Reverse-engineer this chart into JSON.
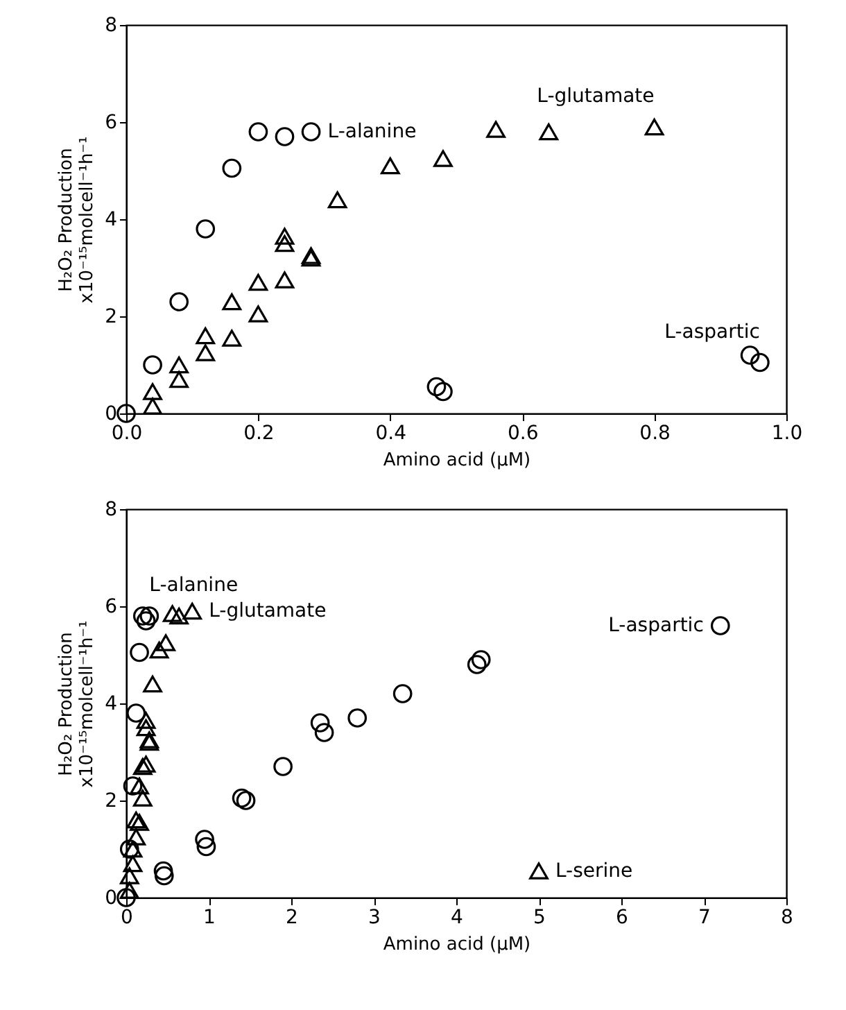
{
  "chart_data": [
    {
      "type": "scatter",
      "xlabel": "Amino acid (μM)",
      "ylabel": "H₂O₂ Production\nx10⁻¹⁵molcell⁻¹h⁻¹",
      "xlim": [
        0,
        1
      ],
      "ylim": [
        0,
        8
      ],
      "xticks": [
        {
          "value": 0,
          "label": "0.0"
        },
        0.2,
        0.4,
        0.6,
        0.8,
        {
          "value": 1,
          "label": "1.0"
        }
      ],
      "yticks": [
        0,
        2,
        4,
        6,
        8
      ],
      "series": [
        {
          "name": "L-alanine",
          "color": "#000000",
          "marker": "circle",
          "x": [
            0.04,
            0.08,
            0.12,
            0.16,
            0.2,
            0.24,
            0.28
          ],
          "values": [
            1.0,
            2.3,
            3.8,
            5.05,
            5.8,
            5.7,
            5.8
          ]
        },
        {
          "name": "L-glutamate",
          "color": "#000000",
          "marker": "triangle",
          "x": [
            0.04,
            0.04,
            0.08,
            0.08,
            0.12,
            0.12,
            0.16,
            0.16,
            0.2,
            0.2,
            0.24,
            0.24,
            0.24,
            0.28,
            0.28,
            0.32,
            0.4,
            0.48,
            0.56,
            0.64,
            0.8
          ],
          "values": [
            0.15,
            0.45,
            0.7,
            1.0,
            1.25,
            1.6,
            1.55,
            2.3,
            2.05,
            2.7,
            2.75,
            3.5,
            3.65,
            3.2,
            3.25,
            4.4,
            5.1,
            5.25,
            5.85,
            5.8,
            5.9
          ]
        },
        {
          "name": "L-aspartic",
          "color": "#000000",
          "marker": "circle",
          "x": [
            0,
            0.47,
            0.48,
            0.945,
            0.96
          ],
          "values": [
            0,
            0.55,
            0.45,
            1.2,
            1.05
          ]
        }
      ]
    },
    {
      "type": "scatter",
      "xlabel": "Amino acid (μM)",
      "ylabel": "H₂O₂ Production\nx10⁻¹⁵molcell⁻¹h⁻¹",
      "xlim": [
        0,
        8
      ],
      "ylim": [
        0,
        8
      ],
      "xticks": [
        0,
        1,
        2,
        3,
        4,
        5,
        6,
        7,
        8
      ],
      "yticks": [
        0,
        2,
        4,
        6,
        8
      ],
      "series": [
        {
          "name": "L-alanine",
          "color": "#000000",
          "marker": "circle",
          "x": [
            0.04,
            0.08,
            0.12,
            0.16,
            0.2,
            0.24,
            0.28
          ],
          "values": [
            1.0,
            2.3,
            3.8,
            5.05,
            5.8,
            5.7,
            5.8
          ]
        },
        {
          "name": "L-glutamate",
          "color": "#000000",
          "marker": "triangle",
          "x": [
            0.04,
            0.04,
            0.08,
            0.08,
            0.12,
            0.12,
            0.16,
            0.16,
            0.2,
            0.2,
            0.24,
            0.24,
            0.24,
            0.28,
            0.28,
            0.32,
            0.4,
            0.48,
            0.56,
            0.64,
            0.8
          ],
          "values": [
            0.15,
            0.45,
            0.7,
            1.0,
            1.25,
            1.6,
            1.55,
            2.3,
            2.05,
            2.7,
            2.75,
            3.5,
            3.65,
            3.2,
            3.25,
            4.4,
            5.1,
            5.25,
            5.85,
            5.8,
            5.9
          ]
        },
        {
          "name": "L-aspartic",
          "color": "#000000",
          "marker": "circle",
          "x": [
            0,
            0.45,
            0.46,
            0.95,
            0.97,
            1.4,
            1.45,
            1.9,
            2.35,
            2.4,
            2.8,
            3.35,
            4.25,
            4.3,
            7.2
          ],
          "values": [
            0,
            0.55,
            0.45,
            1.2,
            1.05,
            2.05,
            2.0,
            2.7,
            3.6,
            3.4,
            3.7,
            4.2,
            4.8,
            4.9,
            5.6
          ]
        },
        {
          "name": "L-serine",
          "color": "#000000",
          "marker": "triangle",
          "x": [
            5
          ],
          "values": [
            0.55
          ]
        }
      ]
    }
  ]
}
